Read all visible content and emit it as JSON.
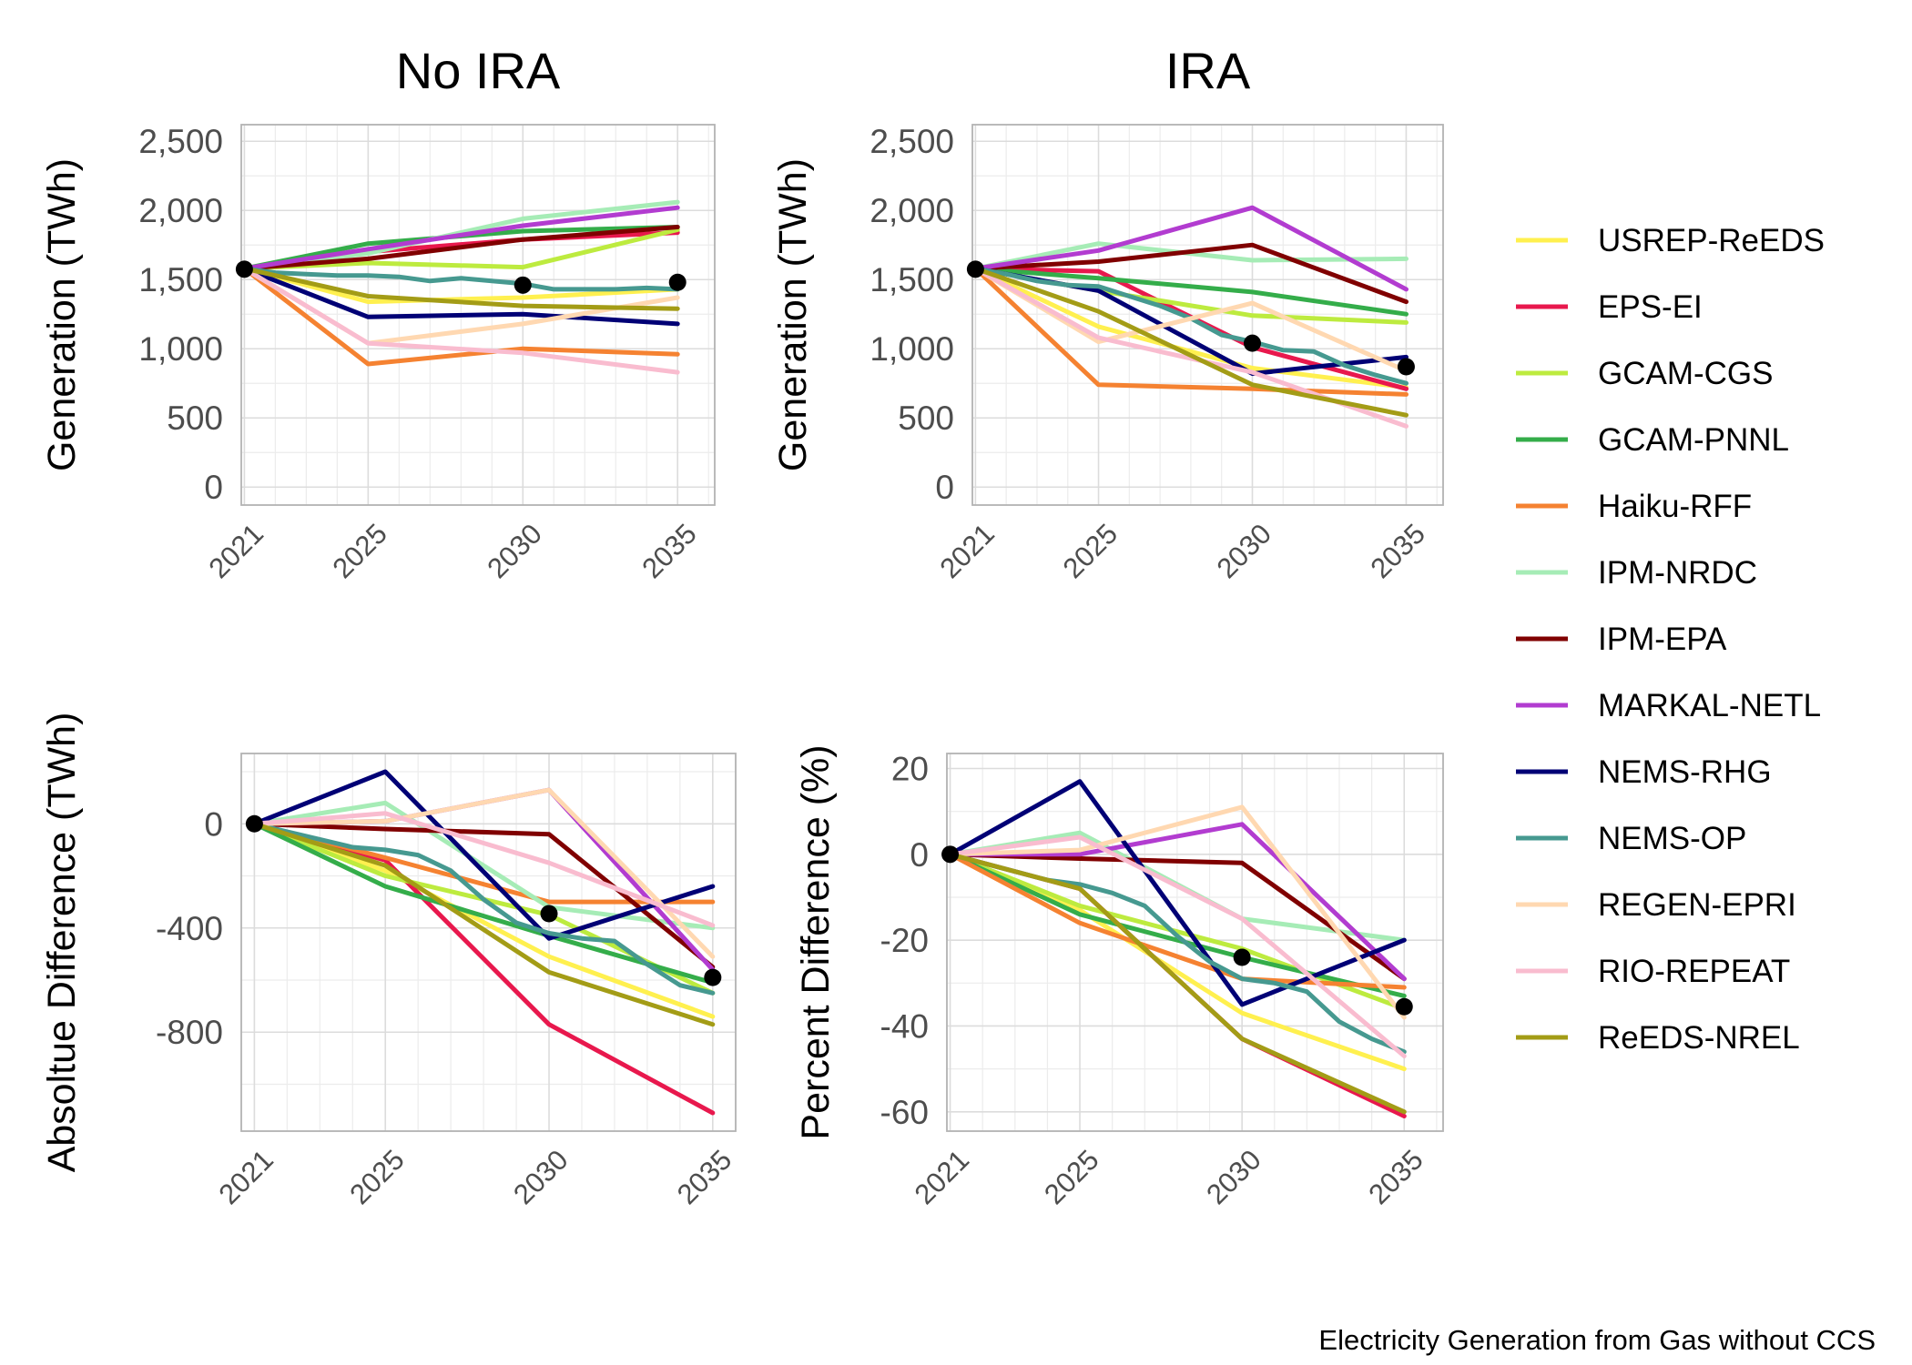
{
  "caption": "Electricity Generation from Gas without CCS",
  "legend_entries": [
    {
      "name": "USREP-ReEDS",
      "color": "#FFF04F"
    },
    {
      "name": "EPS-EI",
      "color": "#E8184D"
    },
    {
      "name": "GCAM-CGS",
      "color": "#BDEB3F"
    },
    {
      "name": "GCAM-PNNL",
      "color": "#34AD4A"
    },
    {
      "name": "Haiku-RFF",
      "color": "#F58231"
    },
    {
      "name": "IPM-NRDC",
      "color": "#A6ECB6"
    },
    {
      "name": "IPM-EPA",
      "color": "#800000"
    },
    {
      "name": "MARKAL-NETL",
      "color": "#B23CD0"
    },
    {
      "name": "NEMS-RHG",
      "color": "#000075"
    },
    {
      "name": "NEMS-OP",
      "color": "#469990"
    },
    {
      "name": "REGEN-EPRI",
      "color": "#FFD8B1"
    },
    {
      "name": "RIO-REPEAT",
      "color": "#F9BCCF"
    },
    {
      "name": "ReEDS-NREL",
      "color": "#A39C16"
    }
  ],
  "chart_data": [
    {
      "type": "line",
      "title": "No IRA",
      "ylabel": "Generation (TWh)",
      "xlabel": "",
      "xlim": [
        2020.9,
        2036.2
      ],
      "ylim": [
        -130,
        2620
      ],
      "x_ticks": [
        2021,
        2025,
        2030,
        2035
      ],
      "x_tick_labels": [
        "2021",
        "2025",
        "2030",
        "2035"
      ],
      "y_ticks": [
        0,
        500,
        1000,
        1500,
        2000,
        2500
      ],
      "y_tick_labels": [
        "0",
        "500",
        "1,000",
        "1,500",
        "2,000",
        "2,500"
      ],
      "y_minor": [
        250,
        750,
        1250,
        1750,
        2250
      ],
      "grid": true,
      "series": [
        {
          "name": "USREP-ReEDS",
          "x": [
            2021,
            2025,
            2030,
            2035
          ],
          "y": [
            1580,
            1340,
            1370,
            1430
          ]
        },
        {
          "name": "EPS-EI",
          "x": [
            2021,
            2025,
            2030,
            2035
          ],
          "y": [
            1580,
            1700,
            1790,
            1840
          ]
        },
        {
          "name": "GCAM-CGS",
          "x": [
            2021,
            2025,
            2030,
            2035
          ],
          "y": [
            1580,
            1620,
            1590,
            1860
          ]
        },
        {
          "name": "GCAM-PNNL",
          "x": [
            2021,
            2025,
            2030,
            2035
          ],
          "y": [
            1580,
            1760,
            1850,
            1880
          ]
        },
        {
          "name": "Haiku-RFF",
          "x": [
            2021,
            2025,
            2030,
            2035
          ],
          "y": [
            1580,
            890,
            1000,
            960
          ]
        },
        {
          "name": "IPM-NRDC",
          "x": [
            2021,
            2025,
            2030,
            2035
          ],
          "y": [
            1580,
            1690,
            1940,
            2060
          ]
        },
        {
          "name": "IPM-EPA",
          "x": [
            2021,
            2025,
            2030,
            2035
          ],
          "y": [
            1580,
            1650,
            1790,
            1880
          ]
        },
        {
          "name": "MARKAL-NETL",
          "x": [
            2021,
            2025,
            2030,
            2035
          ],
          "y": [
            1580,
            1720,
            1890,
            2020
          ]
        },
        {
          "name": "NEMS-RHG",
          "x": [
            2021,
            2025,
            2030,
            2035
          ],
          "y": [
            1580,
            1230,
            1250,
            1180
          ]
        },
        {
          "name": "NEMS-OP",
          "x": [
            2021,
            2022,
            2023,
            2024,
            2025,
            2026,
            2027,
            2028,
            2029,
            2030,
            2031,
            2032,
            2033,
            2034,
            2035
          ],
          "y": [
            1580,
            1550,
            1540,
            1530,
            1530,
            1520,
            1490,
            1510,
            1490,
            1470,
            1430,
            1430,
            1430,
            1440,
            1430
          ]
        },
        {
          "name": "REGEN-EPRI",
          "x": [
            2021,
            2025,
            2030,
            2035
          ],
          "y": [
            1580,
            1040,
            1180,
            1370
          ]
        },
        {
          "name": "RIO-REPEAT",
          "x": [
            2021,
            2025,
            2030,
            2035
          ],
          "y": [
            1580,
            1040,
            970,
            830
          ]
        },
        {
          "name": "ReEDS-NREL",
          "x": [
            2021,
            2025,
            2030,
            2035
          ],
          "y": [
            1580,
            1380,
            1310,
            1290
          ]
        }
      ],
      "points": [
        {
          "x": 2021,
          "y": 1575
        },
        {
          "x": 2030,
          "y": 1460
        },
        {
          "x": 2035,
          "y": 1480
        }
      ]
    },
    {
      "type": "line",
      "title": "IRA",
      "ylabel": "Generation (TWh)",
      "xlabel": "",
      "xlim": [
        2020.9,
        2036.2
      ],
      "ylim": [
        -130,
        2620
      ],
      "x_ticks": [
        2021,
        2025,
        2030,
        2035
      ],
      "x_tick_labels": [
        "2021",
        "2025",
        "2030",
        "2035"
      ],
      "y_ticks": [
        0,
        500,
        1000,
        1500,
        2000,
        2500
      ],
      "y_tick_labels": [
        "0",
        "500",
        "1,000",
        "1,500",
        "2,000",
        "2,500"
      ],
      "y_minor": [
        250,
        750,
        1250,
        1750,
        2250
      ],
      "grid": true,
      "series": [
        {
          "name": "USREP-ReEDS",
          "x": [
            2021,
            2025,
            2030,
            2035
          ],
          "y": [
            1580,
            1160,
            860,
            720
          ]
        },
        {
          "name": "EPS-EI",
          "x": [
            2021,
            2025,
            2030,
            2035
          ],
          "y": [
            1580,
            1560,
            1010,
            710
          ]
        },
        {
          "name": "GCAM-CGS",
          "x": [
            2021,
            2025,
            2030,
            2035
          ],
          "y": [
            1580,
            1420,
            1240,
            1190
          ]
        },
        {
          "name": "GCAM-PNNL",
          "x": [
            2021,
            2025,
            2030,
            2035
          ],
          "y": [
            1580,
            1510,
            1410,
            1250
          ]
        },
        {
          "name": "Haiku-RFF",
          "x": [
            2021,
            2025,
            2030,
            2035
          ],
          "y": [
            1580,
            740,
            710,
            670
          ]
        },
        {
          "name": "IPM-NRDC",
          "x": [
            2021,
            2025,
            2030,
            2035
          ],
          "y": [
            1580,
            1760,
            1640,
            1650
          ]
        },
        {
          "name": "IPM-EPA",
          "x": [
            2021,
            2025,
            2030,
            2035
          ],
          "y": [
            1580,
            1630,
            1750,
            1340
          ]
        },
        {
          "name": "MARKAL-NETL",
          "x": [
            2021,
            2025,
            2030,
            2035
          ],
          "y": [
            1580,
            1710,
            2020,
            1430
          ]
        },
        {
          "name": "NEMS-RHG",
          "x": [
            2021,
            2025,
            2030,
            2035
          ],
          "y": [
            1580,
            1420,
            820,
            940
          ]
        },
        {
          "name": "NEMS-OP",
          "x": [
            2021,
            2022,
            2023,
            2024,
            2025,
            2026,
            2027,
            2028,
            2029,
            2030,
            2031,
            2032,
            2033,
            2034,
            2035
          ],
          "y": [
            1580,
            1540,
            1490,
            1460,
            1450,
            1380,
            1310,
            1220,
            1100,
            1050,
            990,
            980,
            880,
            810,
            750
          ]
        },
        {
          "name": "REGEN-EPRI",
          "x": [
            2021,
            2025,
            2030,
            2035
          ],
          "y": [
            1580,
            1050,
            1330,
            840
          ]
        },
        {
          "name": "RIO-REPEAT",
          "x": [
            2021,
            2025,
            2030,
            2035
          ],
          "y": [
            1580,
            1080,
            830,
            440
          ]
        },
        {
          "name": "ReEDS-NREL",
          "x": [
            2021,
            2025,
            2030,
            2035
          ],
          "y": [
            1580,
            1270,
            740,
            520
          ]
        }
      ],
      "points": [
        {
          "x": 2021,
          "y": 1575
        },
        {
          "x": 2030,
          "y": 1040
        },
        {
          "x": 2035,
          "y": 870
        }
      ]
    },
    {
      "type": "line",
      "title": "",
      "ylabel": "Absoltue Difference (TWh)",
      "xlabel": "",
      "xlim": [
        2020.6,
        2035.7
      ],
      "ylim": [
        -1180,
        270
      ],
      "x_ticks": [
        2021,
        2025,
        2030,
        2035
      ],
      "x_tick_labels": [
        "2021",
        "2025",
        "2030",
        "2035"
      ],
      "y_ticks": [
        0,
        -400,
        -800
      ],
      "y_tick_labels": [
        "0",
        "-400",
        "-800"
      ],
      "y_minor": [
        200,
        -200,
        -600,
        -1000
      ],
      "grid": true,
      "series": [
        {
          "name": "USREP-ReEDS",
          "x": [
            2021,
            2025,
            2030,
            2035
          ],
          "y": [
            0,
            -180,
            -510,
            -740
          ]
        },
        {
          "name": "EPS-EI",
          "x": [
            2021,
            2025,
            2030,
            2035
          ],
          "y": [
            0,
            -140,
            -770,
            -1110
          ]
        },
        {
          "name": "GCAM-CGS",
          "x": [
            2021,
            2025,
            2030,
            2035
          ],
          "y": [
            0,
            -200,
            -350,
            -650
          ]
        },
        {
          "name": "GCAM-PNNL",
          "x": [
            2021,
            2025,
            2030,
            2035
          ],
          "y": [
            0,
            -240,
            -430,
            -610
          ]
        },
        {
          "name": "Haiku-RFF",
          "x": [
            2021,
            2025,
            2030,
            2035
          ],
          "y": [
            0,
            -130,
            -300,
            -300
          ]
        },
        {
          "name": "IPM-NRDC",
          "x": [
            2021,
            2025,
            2030,
            2035
          ],
          "y": [
            0,
            80,
            -320,
            -400
          ]
        },
        {
          "name": "IPM-EPA",
          "x": [
            2021,
            2025,
            2030,
            2035
          ],
          "y": [
            0,
            -20,
            -40,
            -550
          ]
        },
        {
          "name": "MARKAL-NETL",
          "x": [
            2021,
            2025,
            2030,
            2035
          ],
          "y": [
            0,
            10,
            130,
            -560
          ]
        },
        {
          "name": "NEMS-RHG",
          "x": [
            2021,
            2025,
            2030,
            2035
          ],
          "y": [
            0,
            200,
            -440,
            -240
          ]
        },
        {
          "name": "NEMS-OP",
          "x": [
            2021,
            2022,
            2023,
            2024,
            2025,
            2026,
            2027,
            2028,
            2029,
            2030,
            2031,
            2032,
            2033,
            2034,
            2035
          ],
          "y": [
            0,
            -30,
            -60,
            -90,
            -100,
            -120,
            -180,
            -290,
            -380,
            -420,
            -440,
            -450,
            -540,
            -620,
            -650
          ]
        },
        {
          "name": "REGEN-EPRI",
          "x": [
            2021,
            2025,
            2030,
            2035
          ],
          "y": [
            0,
            10,
            130,
            -510
          ]
        },
        {
          "name": "RIO-REPEAT",
          "x": [
            2021,
            2025,
            2030,
            2035
          ],
          "y": [
            0,
            40,
            -150,
            -390
          ]
        },
        {
          "name": "ReEDS-NREL",
          "x": [
            2021,
            2025,
            2030,
            2035
          ],
          "y": [
            0,
            -160,
            -570,
            -770
          ]
        }
      ],
      "points": [
        {
          "x": 2021,
          "y": 0
        },
        {
          "x": 2030,
          "y": -345
        },
        {
          "x": 2035,
          "y": -590
        }
      ]
    },
    {
      "type": "line",
      "title": "",
      "ylabel": "Percent Difference (%)",
      "xlabel": "",
      "xlim": [
        2020.9,
        2036.2
      ],
      "ylim": [
        -64.5,
        23.5
      ],
      "x_ticks": [
        2021,
        2025,
        2030,
        2035
      ],
      "x_tick_labels": [
        "2021",
        "2025",
        "2030",
        "2035"
      ],
      "y_ticks": [
        20,
        0,
        -20,
        -40,
        -60
      ],
      "y_tick_labels": [
        "20",
        "0",
        "-20",
        "-40",
        "-60"
      ],
      "y_minor": [
        10,
        -10,
        -30,
        -50
      ],
      "grid": true,
      "series": [
        {
          "name": "USREP-ReEDS",
          "x": [
            2021,
            2025,
            2030,
            2035
          ],
          "y": [
            0,
            -13,
            -37,
            -50
          ]
        },
        {
          "name": "EPS-EI",
          "x": [
            2021,
            2025,
            2030,
            2035
          ],
          "y": [
            0,
            -8,
            -43,
            -61
          ]
        },
        {
          "name": "GCAM-CGS",
          "x": [
            2021,
            2025,
            2030,
            2035
          ],
          "y": [
            0,
            -12,
            -22,
            -36
          ]
        },
        {
          "name": "GCAM-PNNL",
          "x": [
            2021,
            2025,
            2030,
            2035
          ],
          "y": [
            0,
            -14,
            -24,
            -33
          ]
        },
        {
          "name": "Haiku-RFF",
          "x": [
            2021,
            2025,
            2030,
            2035
          ],
          "y": [
            0,
            -16,
            -29,
            -31
          ]
        },
        {
          "name": "IPM-NRDC",
          "x": [
            2021,
            2025,
            2030,
            2035
          ],
          "y": [
            0,
            5,
            -15,
            -20
          ]
        },
        {
          "name": "IPM-EPA",
          "x": [
            2021,
            2025,
            2030,
            2035
          ],
          "y": [
            0,
            -1,
            -2,
            -29
          ]
        },
        {
          "name": "MARKAL-NETL",
          "x": [
            2021,
            2025,
            2030,
            2035
          ],
          "y": [
            0,
            0,
            7,
            -29
          ]
        },
        {
          "name": "NEMS-RHG",
          "x": [
            2021,
            2025,
            2030,
            2035
          ],
          "y": [
            0,
            17,
            -35,
            -20
          ]
        },
        {
          "name": "NEMS-OP",
          "x": [
            2021,
            2022,
            2023,
            2024,
            2025,
            2026,
            2027,
            2028,
            2029,
            2030,
            2031,
            2032,
            2033,
            2034,
            2035
          ],
          "y": [
            0,
            -2,
            -4,
            -6,
            -7,
            -9,
            -12,
            -19,
            -25,
            -29,
            -30,
            -32,
            -39,
            -43,
            -46
          ]
        },
        {
          "name": "REGEN-EPRI",
          "x": [
            2021,
            2025,
            2030,
            2035
          ],
          "y": [
            0,
            1,
            11,
            -38
          ]
        },
        {
          "name": "RIO-REPEAT",
          "x": [
            2021,
            2025,
            2030,
            2035
          ],
          "y": [
            0,
            4,
            -15,
            -47
          ]
        },
        {
          "name": "ReEDS-NREL",
          "x": [
            2021,
            2025,
            2030,
            2035
          ],
          "y": [
            0,
            -8,
            -43,
            -60
          ]
        }
      ],
      "points": [
        {
          "x": 2021,
          "y": 0
        },
        {
          "x": 2030,
          "y": -24
        },
        {
          "x": 2035,
          "y": -35.5
        }
      ]
    }
  ]
}
